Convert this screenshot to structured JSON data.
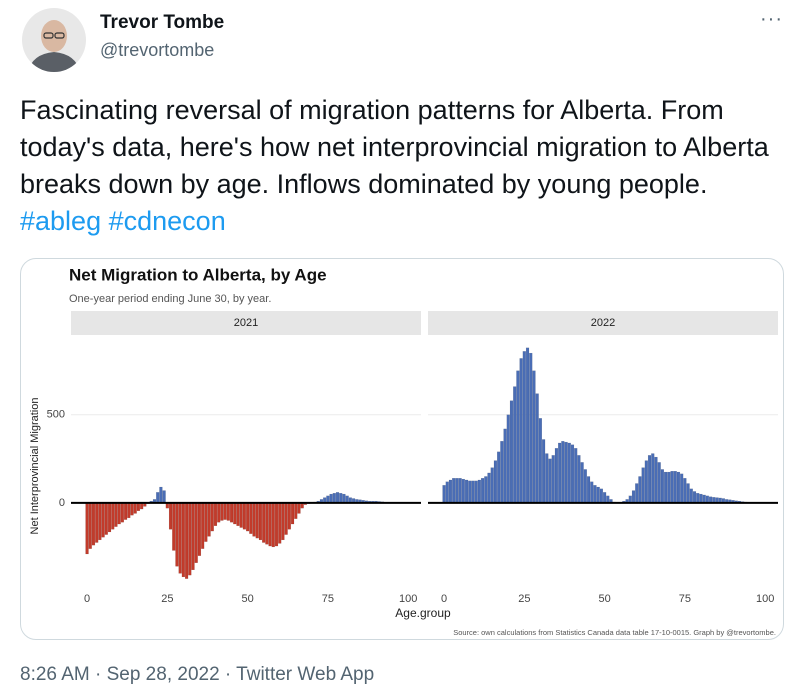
{
  "tweet": {
    "name": "Trevor Tombe",
    "handle": "@trevortombe",
    "text": "Fascinating reversal of migration patterns for Alberta. From today's data, here's how net interprovincial migration to Alberta breaks down by age. Inflows dominated by young people.",
    "hashtags": [
      "#ableg",
      "#cdnecon"
    ],
    "footer": "8:26 AM · Sep 28, 2022 · Twitter Web App"
  },
  "chart_data": {
    "type": "bar",
    "title": "Net Migration to Alberta, by Age",
    "subtitle": "One-year period ending June 30, by year.",
    "ylabel": "Net Interprovincial Migration",
    "xlabel": "Age.group",
    "source": "Source: own calculations from Statistics Canada data table 17-10-0015. Graph by @trevortombe.",
    "positive_color": "#4a6db5",
    "negative_color": "#c23b2b",
    "xlim": [
      -5,
      104
    ],
    "xticks": [
      0,
      25,
      50,
      75,
      100
    ],
    "ylim": [
      -500,
      930
    ],
    "yticks": [
      0,
      500
    ],
    "grid": true,
    "x": [
      0,
      1,
      2,
      3,
      4,
      5,
      6,
      7,
      8,
      9,
      10,
      11,
      12,
      13,
      14,
      15,
      16,
      17,
      18,
      19,
      20,
      21,
      22,
      23,
      24,
      25,
      26,
      27,
      28,
      29,
      30,
      31,
      32,
      33,
      34,
      35,
      36,
      37,
      38,
      39,
      40,
      41,
      42,
      43,
      44,
      45,
      46,
      47,
      48,
      49,
      50,
      51,
      52,
      53,
      54,
      55,
      56,
      57,
      58,
      59,
      60,
      61,
      62,
      63,
      64,
      65,
      66,
      67,
      68,
      69,
      70,
      71,
      72,
      73,
      74,
      75,
      76,
      77,
      78,
      79,
      80,
      81,
      82,
      83,
      84,
      85,
      86,
      87,
      88,
      89,
      90,
      91,
      92,
      93,
      94,
      95,
      96,
      97,
      98,
      99,
      100
    ],
    "facets": [
      {
        "name": "2021",
        "values": [
          -290,
          -260,
          -240,
          -225,
          -210,
          -195,
          -180,
          -165,
          -150,
          -135,
          -120,
          -110,
          -95,
          -85,
          -70,
          -60,
          -45,
          -35,
          -20,
          -5,
          10,
          20,
          60,
          90,
          70,
          -30,
          -150,
          -270,
          -360,
          -400,
          -420,
          -430,
          -410,
          -380,
          -340,
          -300,
          -260,
          -220,
          -190,
          -160,
          -130,
          -110,
          -100,
          -95,
          -100,
          -110,
          -120,
          -130,
          -140,
          -150,
          -160,
          -175,
          -190,
          -200,
          -210,
          -225,
          -235,
          -245,
          -250,
          -245,
          -230,
          -210,
          -180,
          -150,
          -120,
          -90,
          -60,
          -30,
          -10,
          -5,
          0,
          5,
          10,
          20,
          30,
          40,
          50,
          55,
          60,
          55,
          50,
          40,
          30,
          25,
          20,
          18,
          15,
          12,
          10,
          10,
          10,
          8,
          6,
          4,
          3,
          2,
          1,
          1,
          0,
          0,
          0
        ]
      },
      {
        "name": "2022",
        "values": [
          100,
          120,
          130,
          140,
          140,
          140,
          135,
          130,
          125,
          125,
          125,
          130,
          140,
          150,
          170,
          200,
          240,
          290,
          350,
          420,
          500,
          580,
          660,
          750,
          820,
          860,
          880,
          850,
          750,
          620,
          480,
          360,
          280,
          250,
          270,
          310,
          340,
          350,
          345,
          340,
          330,
          310,
          270,
          230,
          190,
          150,
          120,
          100,
          90,
          80,
          60,
          40,
          20,
          5,
          0,
          0,
          10,
          20,
          40,
          70,
          110,
          150,
          200,
          240,
          270,
          280,
          260,
          230,
          190,
          175,
          175,
          180,
          180,
          175,
          165,
          140,
          110,
          80,
          65,
          55,
          50,
          45,
          40,
          35,
          32,
          30,
          28,
          25,
          20,
          18,
          15,
          12,
          10,
          7,
          5,
          3,
          2,
          1,
          0,
          0,
          0
        ]
      }
    ]
  }
}
